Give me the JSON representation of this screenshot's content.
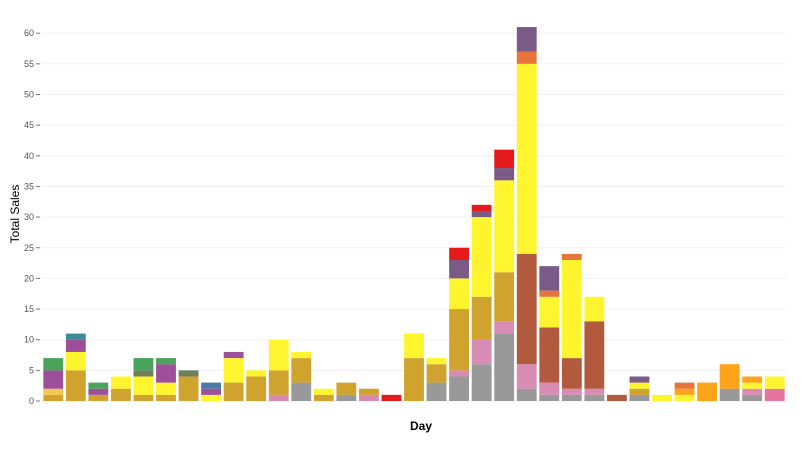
{
  "chart_data": {
    "type": "bar",
    "stacked": true,
    "xlabel": "Day",
    "ylabel": "Total Sales",
    "ylim": [
      0,
      62
    ],
    "y_ticks": [
      0,
      5,
      10,
      15,
      20,
      25,
      30,
      35,
      40,
      45,
      50,
      55,
      60
    ],
    "grid": true,
    "x_tick_labels_shown": false,
    "legend": "none",
    "bars": [
      {
        "segments": [
          {
            "value": 1,
            "color": "#d0a32e"
          },
          {
            "value": 1,
            "color": "#f2c94c"
          },
          {
            "value": 3,
            "color": "#9e4f9a"
          },
          {
            "value": 2,
            "color": "#4aa35a"
          }
        ]
      },
      {
        "segments": [
          {
            "value": 5,
            "color": "#d0a32e"
          },
          {
            "value": 3,
            "color": "#fff52e"
          },
          {
            "value": 2,
            "color": "#9e4f9a"
          },
          {
            "value": 1,
            "color": "#3a8d97"
          }
        ]
      },
      {
        "segments": [
          {
            "value": 1,
            "color": "#d0a32e"
          },
          {
            "value": 1,
            "color": "#9e4f9a"
          },
          {
            "value": 1,
            "color": "#4aa35a"
          }
        ]
      },
      {
        "segments": [
          {
            "value": 2,
            "color": "#d0a32e"
          },
          {
            "value": 2,
            "color": "#fff52e"
          }
        ]
      },
      {
        "segments": [
          {
            "value": 1,
            "color": "#d0a32e"
          },
          {
            "value": 3,
            "color": "#fff52e"
          },
          {
            "value": 1,
            "color": "#6b7f5d"
          },
          {
            "value": 2,
            "color": "#4aa35a"
          }
        ]
      },
      {
        "segments": [
          {
            "value": 1,
            "color": "#d0a32e"
          },
          {
            "value": 2,
            "color": "#fff52e"
          },
          {
            "value": 3,
            "color": "#9e4f9a"
          },
          {
            "value": 1,
            "color": "#4aa35a"
          }
        ]
      },
      {
        "segments": [
          {
            "value": 4,
            "color": "#d0a32e"
          },
          {
            "value": 1,
            "color": "#6b7f5d"
          }
        ]
      },
      {
        "segments": [
          {
            "value": 1,
            "color": "#fff52e"
          },
          {
            "value": 1,
            "color": "#9e4f9a"
          },
          {
            "value": 1,
            "color": "#4a7aa8"
          }
        ]
      },
      {
        "segments": [
          {
            "value": 3,
            "color": "#d0a32e"
          },
          {
            "value": 4,
            "color": "#fff52e"
          },
          {
            "value": 1,
            "color": "#9e4f9a"
          }
        ]
      },
      {
        "segments": [
          {
            "value": 4,
            "color": "#d0a32e"
          },
          {
            "value": 1,
            "color": "#fff52e"
          }
        ]
      },
      {
        "segments": [
          {
            "value": 1,
            "color": "#d98cb3"
          },
          {
            "value": 4,
            "color": "#d0a32e"
          },
          {
            "value": 5,
            "color": "#fff52e"
          }
        ]
      },
      {
        "segments": [
          {
            "value": 3,
            "color": "#999999"
          },
          {
            "value": 4,
            "color": "#d0a32e"
          },
          {
            "value": 1,
            "color": "#fff52e"
          }
        ]
      },
      {
        "segments": [
          {
            "value": 1,
            "color": "#d0a32e"
          },
          {
            "value": 1,
            "color": "#fff52e"
          }
        ]
      },
      {
        "segments": [
          {
            "value": 1,
            "color": "#999999"
          },
          {
            "value": 2,
            "color": "#d0a32e"
          }
        ]
      },
      {
        "segments": [
          {
            "value": 1,
            "color": "#d98cb3"
          },
          {
            "value": 1,
            "color": "#d0a32e"
          }
        ]
      },
      {
        "segments": [
          {
            "value": 1,
            "color": "#e41a1c"
          }
        ]
      },
      {
        "segments": [
          {
            "value": 7,
            "color": "#d0a32e"
          },
          {
            "value": 4,
            "color": "#fff52e"
          }
        ]
      },
      {
        "segments": [
          {
            "value": 3,
            "color": "#999999"
          },
          {
            "value": 3,
            "color": "#d0a32e"
          },
          {
            "value": 1,
            "color": "#fff52e"
          }
        ]
      },
      {
        "segments": [
          {
            "value": 4,
            "color": "#999999"
          },
          {
            "value": 1,
            "color": "#d98cb3"
          },
          {
            "value": 10,
            "color": "#d0a32e"
          },
          {
            "value": 5,
            "color": "#fff52e"
          },
          {
            "value": 3,
            "color": "#7a5a86"
          },
          {
            "value": 2,
            "color": "#e41a1c"
          }
        ]
      },
      {
        "segments": [
          {
            "value": 6,
            "color": "#999999"
          },
          {
            "value": 4,
            "color": "#d98cb3"
          },
          {
            "value": 7,
            "color": "#d0a32e"
          },
          {
            "value": 13,
            "color": "#fff52e"
          },
          {
            "value": 1,
            "color": "#7a5a86"
          },
          {
            "value": 1,
            "color": "#e41a1c"
          }
        ]
      },
      {
        "segments": [
          {
            "value": 11,
            "color": "#999999"
          },
          {
            "value": 2,
            "color": "#d98cb3"
          },
          {
            "value": 8,
            "color": "#d0a32e"
          },
          {
            "value": 15,
            "color": "#fff52e"
          },
          {
            "value": 2,
            "color": "#7a5a86"
          },
          {
            "value": 3,
            "color": "#e41a1c"
          }
        ]
      },
      {
        "segments": [
          {
            "value": 2,
            "color": "#999999"
          },
          {
            "value": 4,
            "color": "#d98cb3"
          },
          {
            "value": 18,
            "color": "#b15a3d"
          },
          {
            "value": 31,
            "color": "#fff52e"
          },
          {
            "value": 2,
            "color": "#e8743b"
          },
          {
            "value": 4,
            "color": "#7a5a86"
          }
        ]
      },
      {
        "segments": [
          {
            "value": 1,
            "color": "#999999"
          },
          {
            "value": 2,
            "color": "#d98cb3"
          },
          {
            "value": 9,
            "color": "#b15a3d"
          },
          {
            "value": 5,
            "color": "#fff52e"
          },
          {
            "value": 1,
            "color": "#e8743b"
          },
          {
            "value": 4,
            "color": "#7a5a86"
          }
        ]
      },
      {
        "segments": [
          {
            "value": 1,
            "color": "#999999"
          },
          {
            "value": 1,
            "color": "#d98cb3"
          },
          {
            "value": 5,
            "color": "#b15a3d"
          },
          {
            "value": 16,
            "color": "#fff52e"
          },
          {
            "value": 1,
            "color": "#e8743b"
          }
        ]
      },
      {
        "segments": [
          {
            "value": 1,
            "color": "#999999"
          },
          {
            "value": 1,
            "color": "#d98cb3"
          },
          {
            "value": 11,
            "color": "#b15a3d"
          },
          {
            "value": 4,
            "color": "#fff52e"
          }
        ]
      },
      {
        "segments": [
          {
            "value": 1,
            "color": "#b15a3d"
          }
        ]
      },
      {
        "segments": [
          {
            "value": 1,
            "color": "#999999"
          },
          {
            "value": 1,
            "color": "#d0a32e"
          },
          {
            "value": 1,
            "color": "#fff52e"
          },
          {
            "value": 1,
            "color": "#7a5a86"
          }
        ]
      },
      {
        "segments": [
          {
            "value": 1,
            "color": "#fff52e"
          }
        ]
      },
      {
        "segments": [
          {
            "value": 1,
            "color": "#fff52e"
          },
          {
            "value": 1,
            "color": "#ffa31a"
          },
          {
            "value": 1,
            "color": "#e8743b"
          }
        ]
      },
      {
        "segments": [
          {
            "value": 3,
            "color": "#ffa31a"
          }
        ]
      },
      {
        "segments": [
          {
            "value": 2,
            "color": "#999999"
          },
          {
            "value": 4,
            "color": "#ffa31a"
          }
        ]
      },
      {
        "segments": [
          {
            "value": 1,
            "color": "#999999"
          },
          {
            "value": 1,
            "color": "#d98cb3"
          },
          {
            "value": 1,
            "color": "#fff52e"
          },
          {
            "value": 1,
            "color": "#ffa31a"
          }
        ]
      },
      {
        "segments": [
          {
            "value": 2,
            "color": "#e7739f"
          },
          {
            "value": 2,
            "color": "#fff52e"
          }
        ]
      }
    ]
  }
}
